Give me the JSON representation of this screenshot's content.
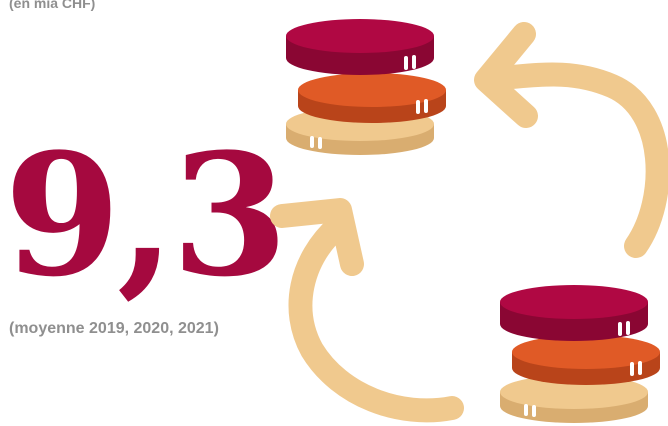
{
  "header": {
    "unit_label": "(en mia CHF)"
  },
  "main": {
    "value": "9,3",
    "period_label": "(moyenne 2019, 2020, 2021)"
  },
  "colors": {
    "value": "#a5093f",
    "coin_top": "#b00843",
    "coin_top_dark": "#8a0633",
    "coin_middle": "#e05a26",
    "coin_middle_dark": "#b9441a",
    "coin_bottom": "#f0c98e",
    "coin_bottom_dark": "#d9ad70",
    "arrow": "#f0c98e",
    "highlight": "#ffffff",
    "muted_text": "#8f8f8f"
  },
  "icons": {
    "coin_stack": "coin-stack-icon",
    "cycle_arrow": "cycle-arrow-icon"
  }
}
